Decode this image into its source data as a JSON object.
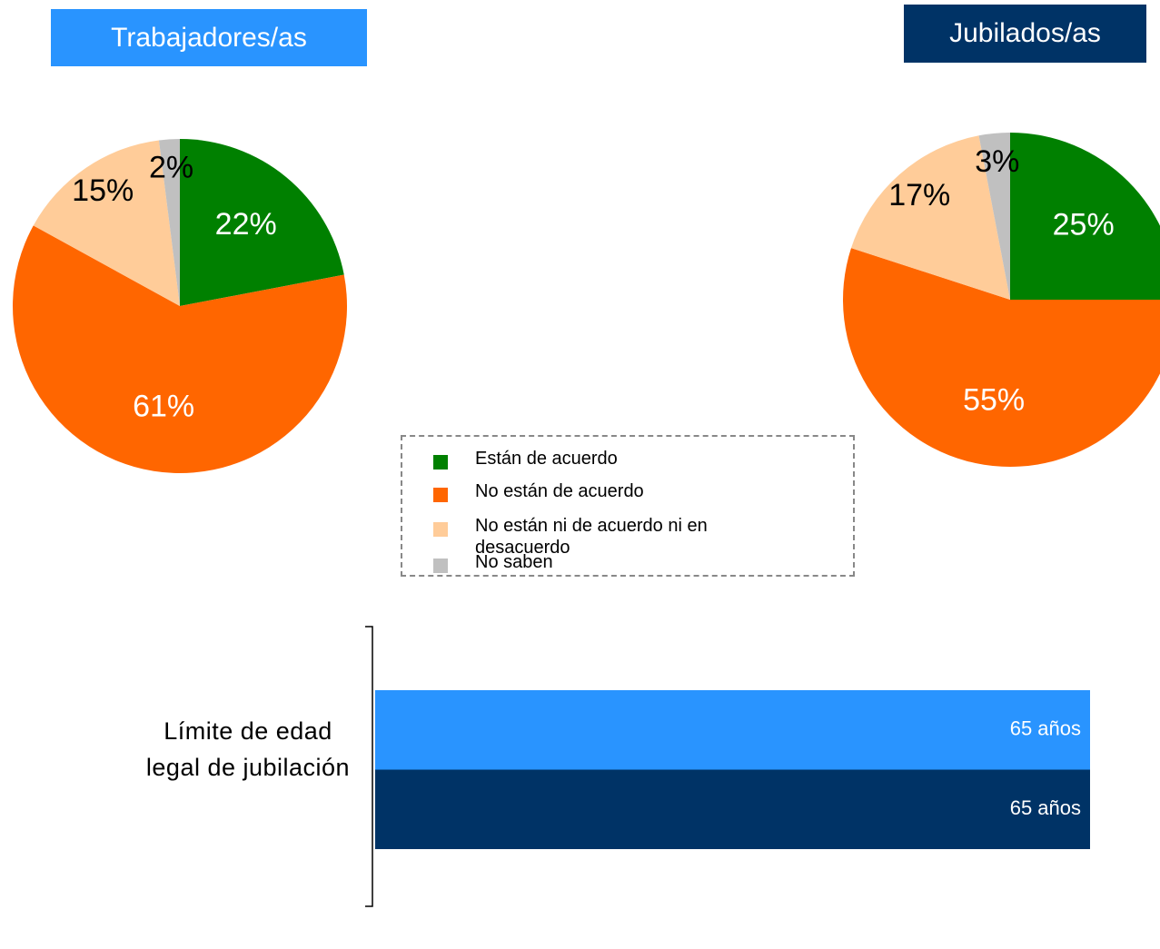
{
  "legend": {
    "labels": [
      "Están de acuerdo",
      "No están de acuerdo",
      "No están ni de acuerdo ni en desacuerdo",
      "No saben"
    ],
    "colors": [
      "#008000",
      "#ff6600",
      "#ffcc99",
      "#c0c0c0"
    ]
  },
  "chart_data": [
    {
      "type": "pie",
      "title": "Trabajadores/as",
      "title_color": "#2994ff",
      "values": [
        22,
        61,
        15,
        2
      ],
      "value_labels": [
        "22%",
        "61%",
        "15%",
        "2%"
      ]
    },
    {
      "type": "pie",
      "title": "Jubilados/as",
      "title_color": "#003366",
      "values": [
        25,
        55,
        17,
        3
      ],
      "value_labels": [
        "25%",
        "55%",
        "17%",
        "3%"
      ]
    },
    {
      "type": "hbar",
      "categories": [
        "Límite de edad legal de jubilación"
      ],
      "xlim": [
        0,
        65
      ],
      "series": [
        {
          "color": "#2994ff",
          "values": [
            65
          ],
          "value_labels": [
            "65 años"
          ]
        },
        {
          "color": "#003366",
          "values": [
            65
          ],
          "value_labels": [
            "65 años"
          ]
        }
      ]
    }
  ]
}
